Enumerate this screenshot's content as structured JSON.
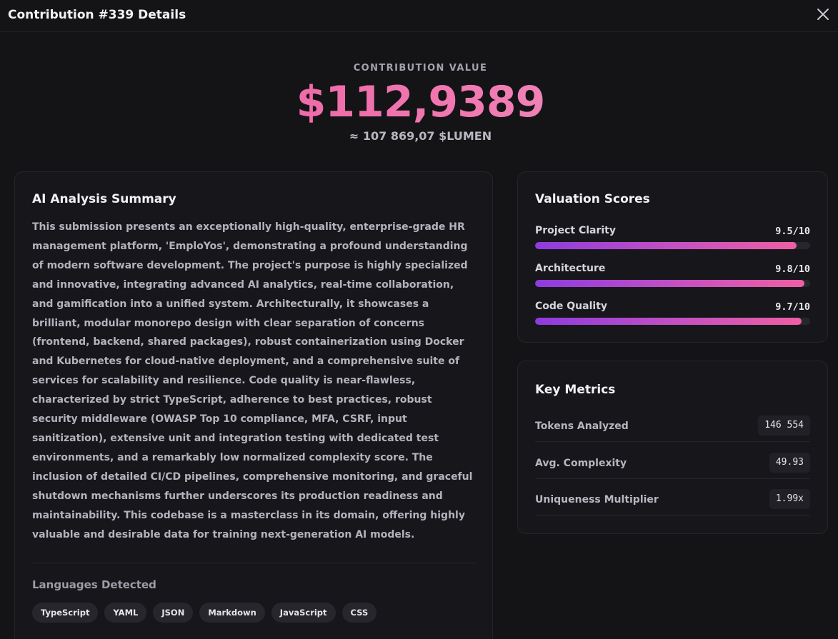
{
  "modal": {
    "title": "Contribution #339 Details",
    "close_icon": "close-icon"
  },
  "value": {
    "label": "CONTRIBUTION VALUE",
    "amount": "$112,9389",
    "equivalent": "≈ 107 869,07 $LUMEN"
  },
  "summary": {
    "title": "AI Analysis Summary",
    "text": "This submission presents an exceptionally high-quality, enterprise-grade HR management platform, 'EmploYos', demonstrating a profound understanding of modern software development. The project's purpose is highly specialized and innovative, integrating advanced AI analytics, real-time collaboration, and gamification into a unified system. Architecturally, it showcases a brilliant, modular monorepo design with clear separation of concerns (frontend, backend, shared packages), robust containerization using Docker and Kubernetes for cloud-native deployment, and a comprehensive suite of services for scalability and resilience. Code quality is near-flawless, characterized by strict TypeScript, adherence to best practices, robust security middleware (OWASP Top 10 compliance, MFA, CSRF, input sanitization), extensive unit and integration testing with dedicated test environments, and a remarkably low normalized complexity score. The inclusion of detailed CI/CD pipelines, comprehensive monitoring, and graceful shutdown mechanisms further underscores its production readiness and maintainability. This codebase is a masterclass in its domain, offering highly valuable and desirable data for training next-generation AI models.",
    "languages_label": "Languages Detected",
    "languages": [
      "TypeScript",
      "YAML",
      "JSON",
      "Markdown",
      "JavaScript",
      "CSS"
    ]
  },
  "scores": {
    "title": "Valuation Scores",
    "items": [
      {
        "label": "Project Clarity",
        "value": "9.5/10",
        "score": 9.5
      },
      {
        "label": "Architecture",
        "value": "9.8/10",
        "score": 9.8
      },
      {
        "label": "Code Quality",
        "value": "9.7/10",
        "score": 9.7
      }
    ]
  },
  "metrics": {
    "title": "Key Metrics",
    "items": [
      {
        "label": "Tokens Analyzed",
        "value": "146 554"
      },
      {
        "label": "Avg. Complexity",
        "value": "49.93"
      },
      {
        "label": "Uniqueness Multiplier",
        "value": "1.99x"
      }
    ]
  },
  "colors": {
    "background": "#141417",
    "accent_pink": "#ef5fa3",
    "accent_purple": "#8d3be0"
  }
}
